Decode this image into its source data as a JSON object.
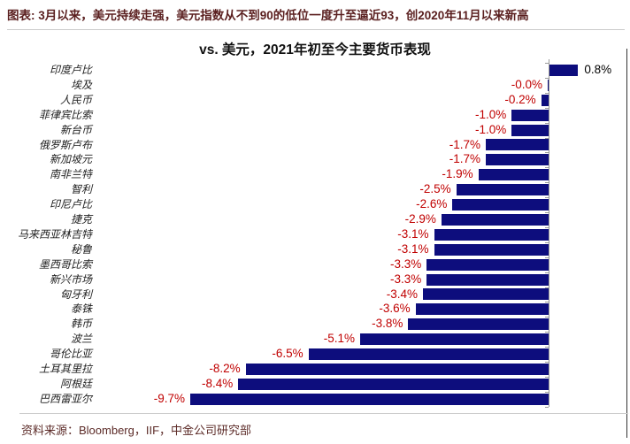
{
  "page": {
    "header": "图表: 3月以来，美元持续走强，美元指数从不到90的低位一度升至逼近93，创2020年11月以来新高",
    "source": "资料来源：Bloomberg，IIF，中金公司研究部"
  },
  "colors": {
    "bar": "#0d0d7d",
    "negative_label": "#c00000",
    "positive_label": "#000000",
    "header_text": "#5a1f1f",
    "divider": "#cccccc",
    "axis": "#999999",
    "right_border": "#333333"
  },
  "chart_data": {
    "type": "bar",
    "orientation": "horizontal",
    "title": "vs. 美元，2021年初至今主要货币表现",
    "xlabel": "",
    "ylabel": "",
    "xlim": [
      -10,
      2
    ],
    "grid": false,
    "legend": "none",
    "value_unit": "%",
    "categories": [
      "印度卢比",
      "埃及",
      "人民币",
      "菲律宾比索",
      "新台币",
      "俄罗斯卢布",
      "新加坡元",
      "南非兰特",
      "智利",
      "印尼卢比",
      "捷克",
      "马来西亚林吉特",
      "秘鲁",
      "墨西哥比索",
      "新兴市场",
      "匈牙利",
      "泰铢",
      "韩币",
      "波兰",
      "哥伦比亚",
      "土耳其里拉",
      "阿根廷",
      "巴西雷亚尔"
    ],
    "values": [
      0.8,
      -0.0,
      -0.2,
      -1.0,
      -1.0,
      -1.7,
      -1.7,
      -1.9,
      -2.5,
      -2.6,
      -2.9,
      -3.1,
      -3.1,
      -3.3,
      -3.3,
      -3.4,
      -3.6,
      -3.8,
      -5.1,
      -6.5,
      -8.2,
      -8.4,
      -9.7
    ],
    "labels": [
      "0.8%",
      "-0.0%",
      "-0.2%",
      "-1.0%",
      "-1.0%",
      "-1.7%",
      "-1.7%",
      "-1.9%",
      "-2.5%",
      "-2.6%",
      "-2.9%",
      "-3.1%",
      "-3.1%",
      "-3.3%",
      "-3.3%",
      "-3.4%",
      "-3.6%",
      "-3.8%",
      "-5.1%",
      "-6.5%",
      "-8.2%",
      "-8.4%",
      "-9.7%"
    ]
  }
}
